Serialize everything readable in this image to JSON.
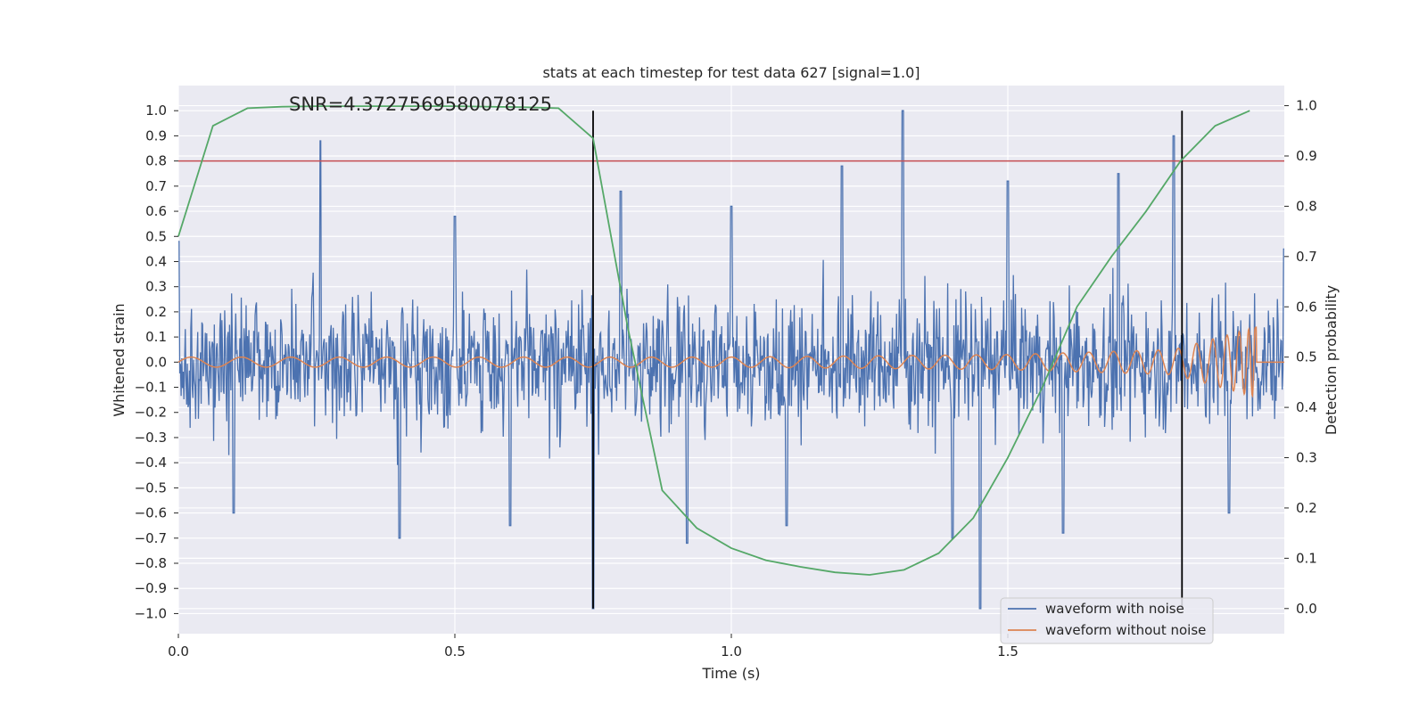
{
  "chart_data": {
    "type": "line",
    "title": "stats at each timestep for test data 627 [signal=1.0]",
    "xlabel": "Time (s)",
    "ylabel": "Whitened strain",
    "ylabel_right": "Detection probability",
    "annotation": "SNR=4.3727569580078125",
    "xlim": [
      0.0,
      2.0
    ],
    "ylim_left": [
      -1.08,
      1.1
    ],
    "ylim_right": [
      -0.05,
      1.04
    ],
    "x_ticks": [
      "0.0",
      "0.5",
      "1.0",
      "1.5"
    ],
    "y_left_ticks": [
      "1.0",
      "0.9",
      "0.8",
      "0.7",
      "0.6",
      "0.5",
      "0.4",
      "0.3",
      "0.2",
      "0.1",
      "0.0",
      "−0.1",
      "−0.2",
      "−0.3",
      "−0.4",
      "−0.5",
      "−0.6",
      "−0.7",
      "−0.8",
      "−0.9",
      "−1.0"
    ],
    "y_right_ticks": [
      "1.0",
      "0.9",
      "0.8",
      "0.7",
      "0.6",
      "0.5",
      "0.4",
      "0.3",
      "0.2",
      "0.1",
      "0.0"
    ],
    "grid": true,
    "legend_position": "lower-right",
    "threshold_line": {
      "y": 0.8,
      "color": "#c44e52"
    },
    "vertical_markers": {
      "x": [
        0.75,
        1.815
      ],
      "ymin": -0.98,
      "ymax": 1.0,
      "color": "#000000"
    },
    "series": [
      {
        "name": "waveform with noise",
        "color": "#4c72b0",
        "axis": "left",
        "description": "dense noisy strain, roughly within ±0.6 with spikes up to 1.0 and down to -0.98",
        "x": [
          0.0,
          0.1,
          0.257,
          0.4,
          0.5,
          0.6,
          0.75,
          0.8,
          0.92,
          1.0,
          1.1,
          1.2,
          1.31,
          1.4,
          1.45,
          1.5,
          1.6,
          1.7,
          1.8,
          1.9,
          2.0
        ],
        "values": [
          0.48,
          -0.6,
          0.88,
          -0.7,
          0.58,
          -0.65,
          -0.98,
          0.68,
          -0.72,
          0.62,
          -0.65,
          0.78,
          1.0,
          -0.7,
          -0.98,
          0.72,
          -0.68,
          0.75,
          0.9,
          -0.6,
          0.45
        ]
      },
      {
        "name": "waveform without noise",
        "color": "#dd8452",
        "axis": "left",
        "description": "chirp signal with amplitude growing from ~0.02 to ~0.14 and increasing frequency, ending near t=1.96",
        "x": [
          0.0,
          0.5,
          1.0,
          1.5,
          1.8,
          1.95,
          1.96
        ],
        "values": [
          0.02,
          0.02,
          0.02,
          0.03,
          0.05,
          0.14,
          0.0
        ]
      },
      {
        "name": "",
        "color": "#55a868",
        "axis": "right",
        "x": [
          0.0,
          0.0625,
          0.125,
          0.1875,
          0.25,
          0.3125,
          0.375,
          0.4375,
          0.5,
          0.5625,
          0.625,
          0.6875,
          0.75,
          0.8125,
          0.875,
          0.9375,
          1.0,
          1.0625,
          1.125,
          1.1875,
          1.25,
          1.3125,
          1.375,
          1.4375,
          1.5,
          1.5625,
          1.625,
          1.6875,
          1.75,
          1.8125,
          1.875,
          1.9375
        ],
        "values": [
          0.74,
          0.96,
          0.995,
          0.998,
          0.999,
          0.999,
          0.999,
          0.999,
          0.999,
          0.998,
          0.997,
          0.995,
          0.935,
          0.56,
          0.235,
          0.16,
          0.12,
          0.096,
          0.083,
          0.072,
          0.067,
          0.077,
          0.11,
          0.18,
          0.3,
          0.44,
          0.6,
          0.7,
          0.79,
          0.89,
          0.96,
          0.99
        ]
      }
    ]
  }
}
